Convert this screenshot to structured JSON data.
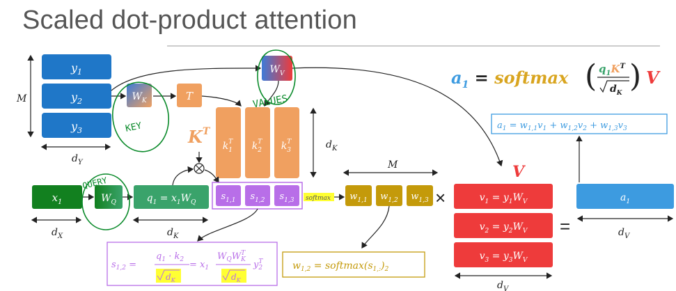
{
  "title": "Scaled dot-product attention",
  "colors": {
    "blue": "#1f77c8",
    "green_dark": "#12801f",
    "green": "#3aa36b",
    "orange": "#f0a060",
    "purple": "#b86ee8",
    "gold": "#c49a0a",
    "red": "#ee3b3b",
    "light_blue": "#3d9be0",
    "pen_green": "#0a8a2a",
    "highlight": "#ffff33"
  },
  "labels": {
    "M_left": "M",
    "dy": "d",
    "dy_sub": "Y",
    "dx": "d",
    "dx_sub": "X",
    "dK_mid": "d",
    "dK_mid_sub": "K",
    "dK_right": "d",
    "dK_right_sub": "K",
    "M_top": "M",
    "dV_right": "d",
    "dV_right_sub": "V",
    "dV_bottom": "d",
    "dV_bottom_sub": "V",
    "V_big": "V",
    "KT_big": "K",
    "KT_sup": "T",
    "times": "×",
    "equals": "=",
    "softmax_tag": "softmax",
    "otimes": "⊗"
  },
  "blocks": {
    "y1": "y",
    "y1_sub": "1",
    "y2": "y",
    "y2_sub": "2",
    "y3": "y",
    "y3_sub": "3",
    "WK": "W",
    "WK_sub": "K",
    "T": "T",
    "WV": "W",
    "WV_sub": "V",
    "x1": "x",
    "x1_sub": "1",
    "WQ": "W",
    "WQ_sub": "Q",
    "q1": "q",
    "q1_sub": "1",
    "q1_eq": " = x",
    "q1_eq_sub": "1",
    "q1_W": "W",
    "q1_W_sub": "Q",
    "k1": "k",
    "k1_sub": "1",
    "k2": "k",
    "k2_sub": "2",
    "k3": "k",
    "k3_sub": "3",
    "k_sup": "T",
    "s11": "s",
    "s11_sub": "1,1",
    "s12": "s",
    "s12_sub": "1,2",
    "s13": "s",
    "s13_sub": "1,3",
    "w11": "w",
    "w11_sub": "1,1",
    "w12": "w",
    "w12_sub": "1,2",
    "w13": "w",
    "w13_sub": "1,3",
    "v1": "v",
    "v1_sub": "1",
    "v1_eq": " = y",
    "v1_eq_sub": "1",
    "v1_W": "W",
    "v1_W_sub": "V",
    "v2": "v",
    "v2_sub": "2",
    "v2_eq": " = y",
    "v2_eq_sub": "2",
    "v2_W": "W",
    "v2_W_sub": "V",
    "v3": "v",
    "v3_sub": "3",
    "v3_eq": " = y",
    "v3_eq_sub": "3",
    "v3_W": "W",
    "v3_W_sub": "V",
    "a1": "a",
    "a1_sub": "1"
  },
  "formula": {
    "a": "a",
    "a_sub": "1",
    "eq": " = ",
    "softmax": "softmax",
    "q": "q",
    "q_sub": "1",
    "K": "K",
    "K_sup": "T",
    "sqrt_d": "d",
    "sqrt_d_sub": "K",
    "V": "V"
  },
  "sum_box": {
    "a": "a",
    "a_sub": "1",
    "eq": " = ",
    "w1": "w",
    "w1_sub": "1,1",
    "v1": "v",
    "v1_sub": "1",
    "plus": " + ",
    "w2": "w",
    "w2_sub": "1,2",
    "v2": "v",
    "v2_sub": "2",
    "w3": "w",
    "w3_sub": "1,3",
    "v3": "v",
    "v3_sub": "3"
  },
  "s_box": {
    "s": "s",
    "s_sub": "1,2",
    "eq": " = ",
    "num": "q",
    "num_sub": "1",
    "dot": " · ",
    "k": "k",
    "k_sub": "2",
    "den": "d",
    "den_sub": "K",
    "eq2": " = x",
    "eq2_sub": "1",
    "num2a": "W",
    "num2a_sub": "Q",
    "num2b": "W",
    "num2b_sub": "K",
    "num2b_sup": "T",
    "den2": "d",
    "den2_sub": "K",
    "y": "y",
    "y_sub": "2",
    "y_sup": "T"
  },
  "w_box": {
    "w": "w",
    "w_sub": "1,2",
    "eq": " = ",
    "softmax": "softmax(s",
    "s_sub": "1,:",
    "close": ")",
    "close_sub": "2"
  },
  "handwriting": {
    "key": "KEY",
    "values": "VALUES",
    "query": "QUERY"
  }
}
